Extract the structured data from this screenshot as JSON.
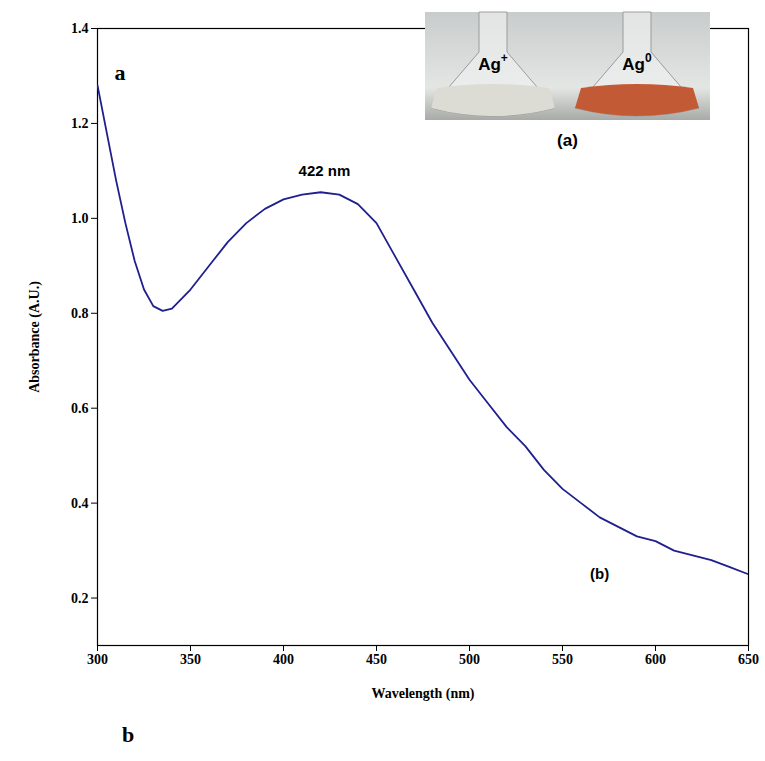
{
  "chart_data": {
    "type": "line",
    "x_label": "Wavelength (nm)",
    "y_label": "Absorbance (A.U.)",
    "color": "#1f1f8f",
    "x": [
      300,
      305,
      310,
      315,
      320,
      325,
      330,
      335,
      340,
      345,
      350,
      360,
      370,
      380,
      390,
      400,
      410,
      420,
      430,
      440,
      450,
      460,
      470,
      480,
      490,
      500,
      510,
      520,
      530,
      540,
      550,
      560,
      570,
      580,
      590,
      600,
      610,
      620,
      630,
      640,
      650
    ],
    "values": [
      1.28,
      1.18,
      1.08,
      0.99,
      0.91,
      0.85,
      0.815,
      0.805,
      0.81,
      0.83,
      0.85,
      0.9,
      0.95,
      0.99,
      1.02,
      1.04,
      1.05,
      1.055,
      1.05,
      1.03,
      0.99,
      0.92,
      0.85,
      0.78,
      0.72,
      0.66,
      0.61,
      0.56,
      0.52,
      0.47,
      0.43,
      0.4,
      0.37,
      0.35,
      0.33,
      0.32,
      0.3,
      0.29,
      0.28,
      0.265,
      0.25
    ],
    "xlim": [
      300,
      650
    ],
    "xticks": [
      300,
      350,
      400,
      450,
      500,
      550,
      600,
      650
    ],
    "ylim": [
      0.1,
      1.4
    ],
    "yticks": [
      0.2,
      0.4,
      0.6,
      0.8,
      {
        "value": 1,
        "label": "1.0"
      },
      1.2,
      1.4
    ],
    "grid": false,
    "annotations": [
      {
        "text": "422 nm",
        "x": 422,
        "y": 1.1
      },
      {
        "text": "(b)",
        "x": 570,
        "y": 0.25
      }
    ],
    "panel_labels": [
      "a",
      "b"
    ],
    "inset": {
      "flasks": [
        {
          "label": "Ag",
          "superscript": "+",
          "color": "#dcdcd4"
        },
        {
          "label": "Ag",
          "superscript": "0",
          "color": "#c25a36"
        }
      ],
      "caption": "(a)"
    }
  }
}
